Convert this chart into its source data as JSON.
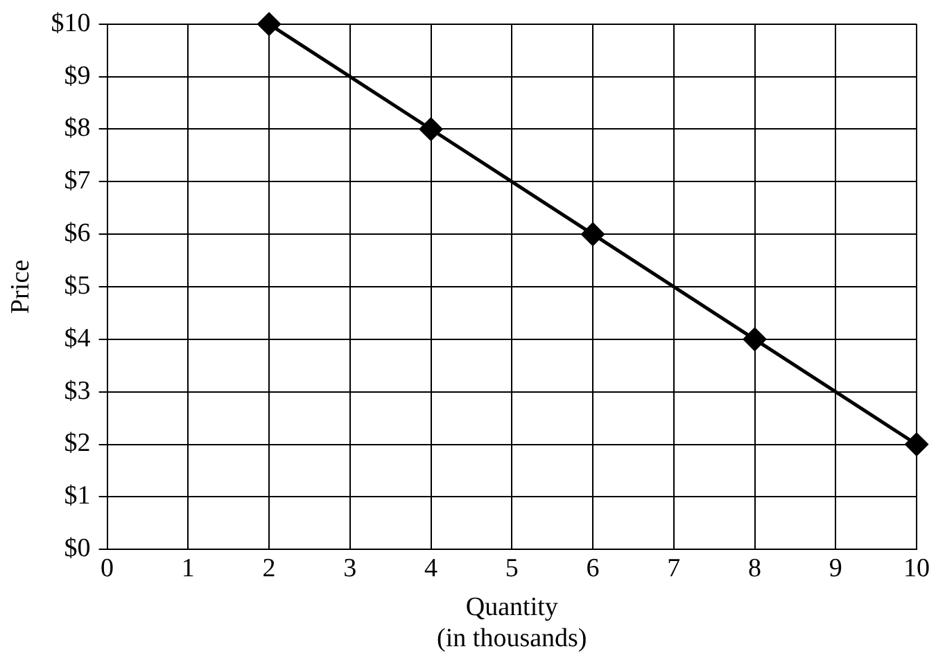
{
  "chart_data": {
    "type": "line",
    "xlabel": "Quantity\n(in thousands)",
    "ylabel": "Price",
    "x": [
      2,
      4,
      6,
      8,
      10
    ],
    "series": [
      {
        "color": "#000000",
        "values": [
          10,
          8,
          6,
          4,
          2
        ]
      }
    ],
    "xlim": [
      0,
      10
    ],
    "xticks": [
      0,
      1,
      2,
      3,
      4,
      5,
      6,
      7,
      8,
      9,
      10
    ],
    "ylim": [
      0,
      10
    ],
    "yticks": [
      {
        "value": 0,
        "label": "$0"
      },
      {
        "value": 1,
        "label": "$1"
      },
      {
        "value": 2,
        "label": "$2"
      },
      {
        "value": 3,
        "label": "$3"
      },
      {
        "value": 4,
        "label": "$4"
      },
      {
        "value": 5,
        "label": "$5"
      },
      {
        "value": 6,
        "label": "$6"
      },
      {
        "value": 7,
        "label": "$7"
      },
      {
        "value": 8,
        "label": "$8"
      },
      {
        "value": 9,
        "label": "$9"
      },
      {
        "value": 10,
        "label": "$10"
      }
    ],
    "grid": true,
    "legend": false,
    "marker": "diamond",
    "line_style": "solid"
  }
}
